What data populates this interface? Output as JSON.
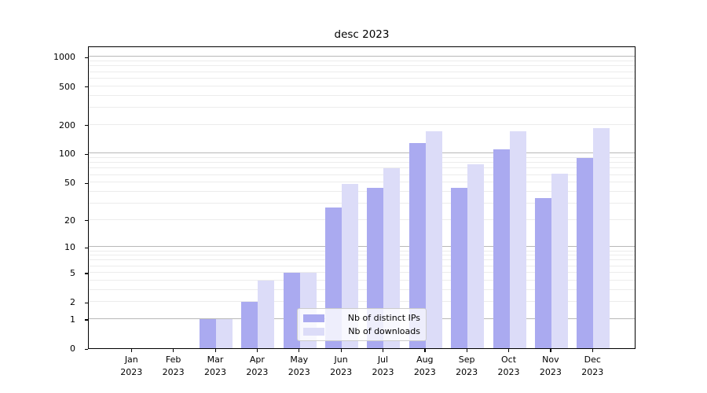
{
  "chart_data": {
    "type": "bar",
    "title": "desc 2023",
    "categories": [
      "Jan 2023",
      "Feb 2023",
      "Mar 2023",
      "Apr 2023",
      "May 2023",
      "Jun 2023",
      "Jul 2023",
      "Aug 2023",
      "Sep 2023",
      "Oct 2023",
      "Nov 2023",
      "Dec 2023"
    ],
    "series": [
      {
        "name": "Nb of distinct IPs",
        "color": "#aaaaf0",
        "values": [
          0,
          0,
          1,
          2,
          5,
          27,
          44,
          130,
          44,
          110,
          34,
          90
        ]
      },
      {
        "name": "Nb of downloads",
        "color": "#dcdcf8",
        "values": [
          0,
          0,
          1,
          4,
          5,
          48,
          70,
          170,
          78,
          170,
          62,
          185
        ]
      }
    ],
    "xlabel": "",
    "ylabel": "",
    "y_scale": "log10(value+1)",
    "y_ticks": [
      0,
      1,
      2,
      5,
      10,
      20,
      50,
      100,
      200,
      500,
      1000
    ],
    "y_minor_gridlines": [
      2,
      3,
      4,
      5,
      6,
      7,
      8,
      9,
      20,
      30,
      40,
      50,
      60,
      70,
      80,
      90,
      200,
      300,
      400,
      500,
      600,
      700,
      800,
      900
    ],
    "y_major_gridlines": [
      1,
      10,
      100,
      1000
    ],
    "ylim": [
      0,
      1270
    ],
    "grid": true,
    "legend_position": "lower center"
  },
  "colors": {
    "major_gridline": "#b8b8b8",
    "minor_gridline": "#ececec",
    "spine": "#000000",
    "text": "#000000",
    "background": "#ffffff"
  }
}
